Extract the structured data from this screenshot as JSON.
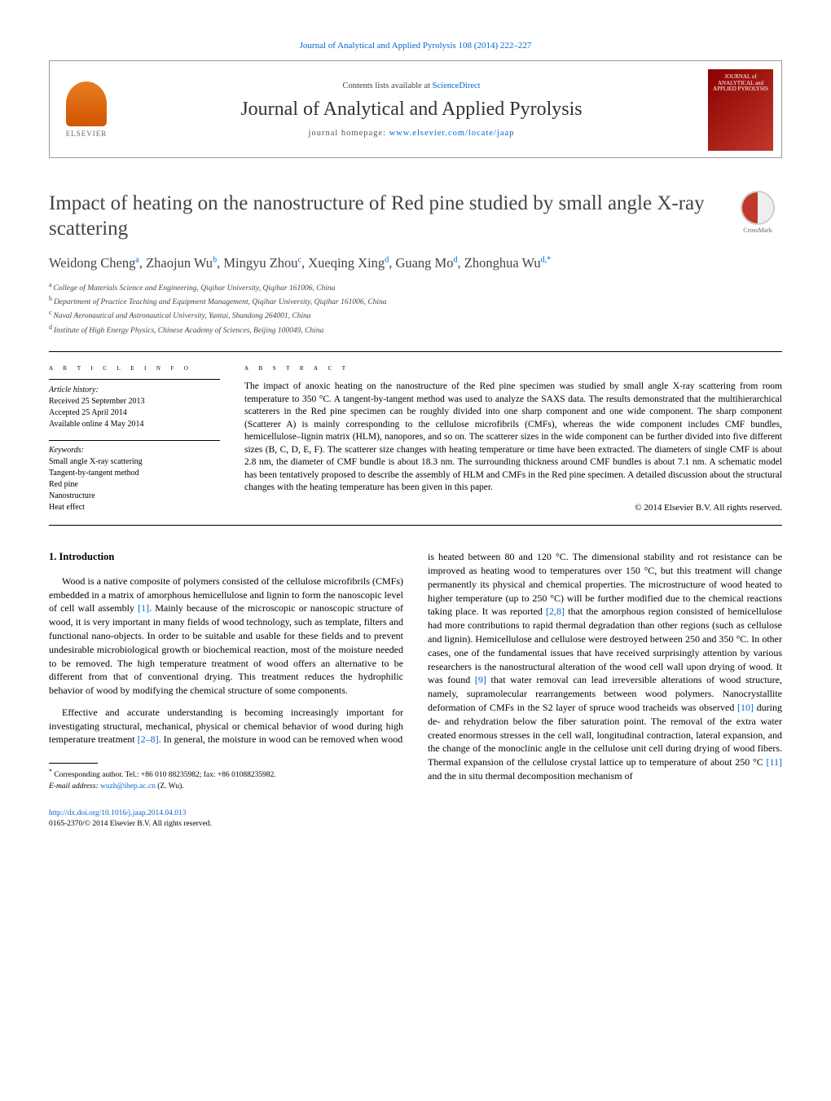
{
  "top": {
    "journal_ref": "Journal of Analytical and Applied Pyrolysis 108 (2014) 222–227"
  },
  "header": {
    "elsevier": "ELSEVIER",
    "contents_prefix": "Contents lists available at ",
    "contents_link": "ScienceDirect",
    "journal_title": "Journal of Analytical and Applied Pyrolysis",
    "homepage_prefix": "journal homepage: ",
    "homepage_link": "www.elsevier.com/locate/jaap",
    "cover_text": "JOURNAL of ANALYTICAL and APPLIED PYROLYSIS"
  },
  "crossmark": "CrossMark",
  "article": {
    "title": "Impact of heating on the nanostructure of Red pine studied by small angle X-ray scattering",
    "authors_html": "Weidong Cheng",
    "authors": [
      {
        "name": "Weidong Cheng",
        "sup": "a"
      },
      {
        "name": "Zhaojun Wu",
        "sup": "b"
      },
      {
        "name": "Mingyu Zhou",
        "sup": "c"
      },
      {
        "name": "Xueqing Xing",
        "sup": "d"
      },
      {
        "name": "Guang Mo",
        "sup": "d"
      },
      {
        "name": "Zhonghua Wu",
        "sup": "d,*"
      }
    ],
    "affiliations": [
      {
        "sup": "a",
        "text": "College of Materials Science and Engineering, Qiqihar University, Qiqihar 161006, China"
      },
      {
        "sup": "b",
        "text": "Department of Practice Teaching and Equipment Management, Qiqihar University, Qiqihar 161006, China"
      },
      {
        "sup": "c",
        "text": "Naval Aeronautical and Astronautical University, Yantai, Shandong 264001, China"
      },
      {
        "sup": "d",
        "text": "Institute of High Energy Physics, Chinese Academy of Sciences, Beijing 100049, China"
      }
    ]
  },
  "info": {
    "heading": "a r t i c l e   i n f o",
    "history_label": "Article history:",
    "received": "Received 25 September 2013",
    "accepted": "Accepted 25 April 2014",
    "online": "Available online 4 May 2014",
    "keywords_label": "Keywords:",
    "keywords": [
      "Small angle X-ray scattering",
      "Tangent-by-tangent method",
      "Red pine",
      "Nanostructure",
      "Heat effect"
    ]
  },
  "abstract": {
    "heading": "a b s t r a c t",
    "text": "The impact of anoxic heating on the nanostructure of the Red pine specimen was studied by small angle X-ray scattering from room temperature to 350 °C. A tangent-by-tangent method was used to analyze the SAXS data. The results demonstrated that the multihierarchical scatterers in the Red pine specimen can be roughly divided into one sharp component and one wide component. The sharp component (Scatterer A) is mainly corresponding to the cellulose microfibrils (CMFs), whereas the wide component includes CMF bundles, hemicellulose–lignin matrix (HLM), nanopores, and so on. The scatterer sizes in the wide component can be further divided into five different sizes (B, C, D, E, F). The scatterer size changes with heating temperature or time have been extracted. The diameters of single CMF is about 2.8 nm, the diameter of CMF bundle is about 18.3 nm. The surrounding thickness around CMF bundles is about 7.1 nm. A schematic model has been tentatively proposed to describe the assembly of HLM and CMFs in the Red pine specimen. A detailed discussion about the structural changes with the heating temperature has been given in this paper.",
    "copyright": "© 2014 Elsevier B.V. All rights reserved."
  },
  "body": {
    "section_number": "1.",
    "section_title": "Introduction",
    "col1_p1": "Wood is a native composite of polymers consisted of the cellulose microfibrils (CMFs) embedded in a matrix of amorphous hemicellulose and lignin to form the nanoscopic level of cell wall assembly [1]. Mainly because of the microscopic or nanoscopic structure of wood, it is very important in many fields of wood technology, such as template, filters and functional nano-objects. In order to be suitable and usable for these fields and to prevent undesirable microbiological growth or biochemical reaction, most of the moisture needed to be removed. The high temperature treatment of wood offers an alternative to be different from that of conventional drying. This treatment reduces the hydrophilic behavior of wood by modifying the chemical structure of some components.",
    "col1_p2": "Effective and accurate understanding is becoming increasingly important for investigating structural, mechanical, physical or chemical behavior of wood during high temperature treatment [2–8]. In general, the moisture in wood can be removed when wood",
    "col2_p1": "is heated between 80 and 120 °C. The dimensional stability and rot resistance can be improved as heating wood to temperatures over 150 °C, but this treatment will change permanently its physical and chemical properties. The microstructure of wood heated to higher temperature (up to 250 °C) will be further modified due to the chemical reactions taking place. It was reported [2,8] that the amorphous region consisted of hemicellulose had more contributions to rapid thermal degradation than other regions (such as cellulose and lignin). Hemicellulose and cellulose were destroyed between 250 and 350 °C. In other cases, one of the fundamental issues that have received surprisingly attention by various researchers is the nanostructural alteration of the wood cell wall upon drying of wood. It was found [9] that water removal can lead irreversible alterations of wood structure, namely, supramolecular rearrangements between wood polymers. Nanocrystallite deformation of CMFs in the S2 layer of spruce wood tracheids was observed [10] during de- and rehydration below the fiber saturation point. The removal of the extra water created enormous stresses in the cell wall, longitudinal contraction, lateral expansion, and the change of the monoclinic angle in the cellulose unit cell during drying of wood fibers. Thermal expansion of the cellulose crystal lattice up to temperature of about 250 °C [11] and the in situ thermal decomposition mechanism of"
  },
  "footnote": {
    "corr": "Corresponding author. Tel.: +86 010 88235982; fax: +86 01088235982.",
    "email_label": "E-mail address:",
    "email": "wuzh@ihep.ac.cn",
    "email_name": "(Z. Wu)."
  },
  "footer": {
    "doi": "http://dx.doi.org/10.1016/j.jaap.2014.04.013",
    "issn": "0165-2370/© 2014 Elsevier B.V. All rights reserved."
  },
  "refs": {
    "r1": "[1]",
    "r2_8": "[2–8]",
    "r2c8": "[2,8]",
    "r9": "[9]",
    "r10": "[10]",
    "r11": "[11]"
  }
}
